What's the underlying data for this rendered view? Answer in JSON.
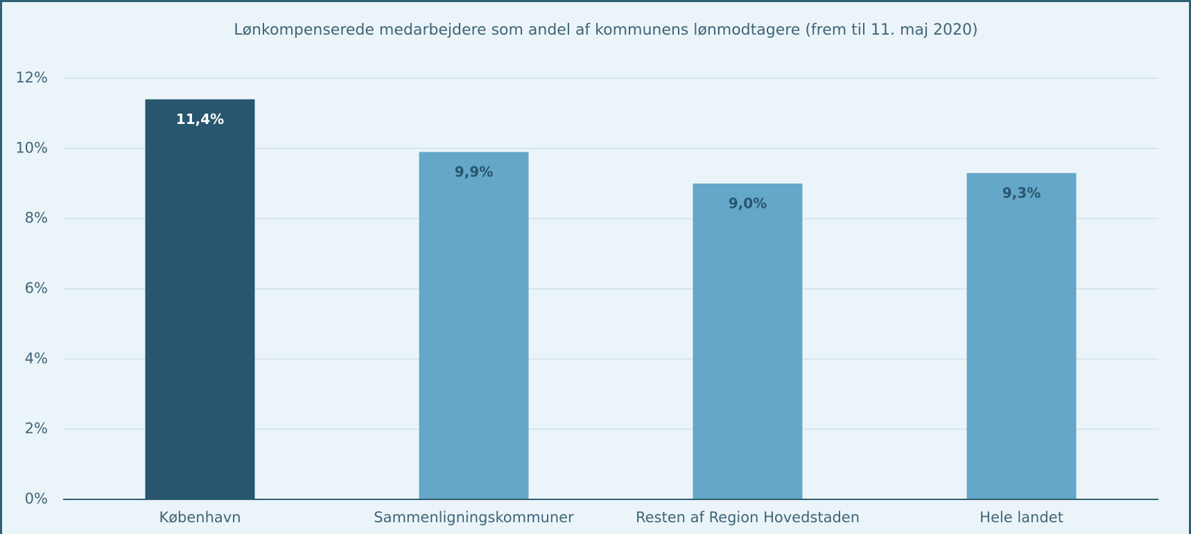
{
  "chart_data": {
    "type": "bar",
    "title": "Lønkompenserede medarbejdere som andel af kommunens lønmodtagere (frem til 11. maj 2020)",
    "categories": [
      "København",
      "Sammenligningskommuner",
      "Resten af Region Hovedstaden",
      "Hele landet"
    ],
    "values": [
      11.4,
      9.9,
      9.0,
      9.3
    ],
    "value_labels": [
      "11,4%",
      "9,9%",
      "9,0%",
      "9,3%"
    ],
    "colors": [
      "#27566e",
      "#65a7c8",
      "#65a7c8",
      "#65a7c8"
    ],
    "ylim": [
      0,
      12
    ],
    "yticks": [
      {
        "value": 0,
        "label": "0%"
      },
      {
        "value": 2,
        "label": "2%"
      },
      {
        "value": 4,
        "label": "4%"
      },
      {
        "value": 6,
        "label": "6%"
      },
      {
        "value": 8,
        "label": "8%"
      },
      {
        "value": 10,
        "label": "10%"
      },
      {
        "value": 12,
        "label": "12%"
      }
    ],
    "grid": true
  }
}
